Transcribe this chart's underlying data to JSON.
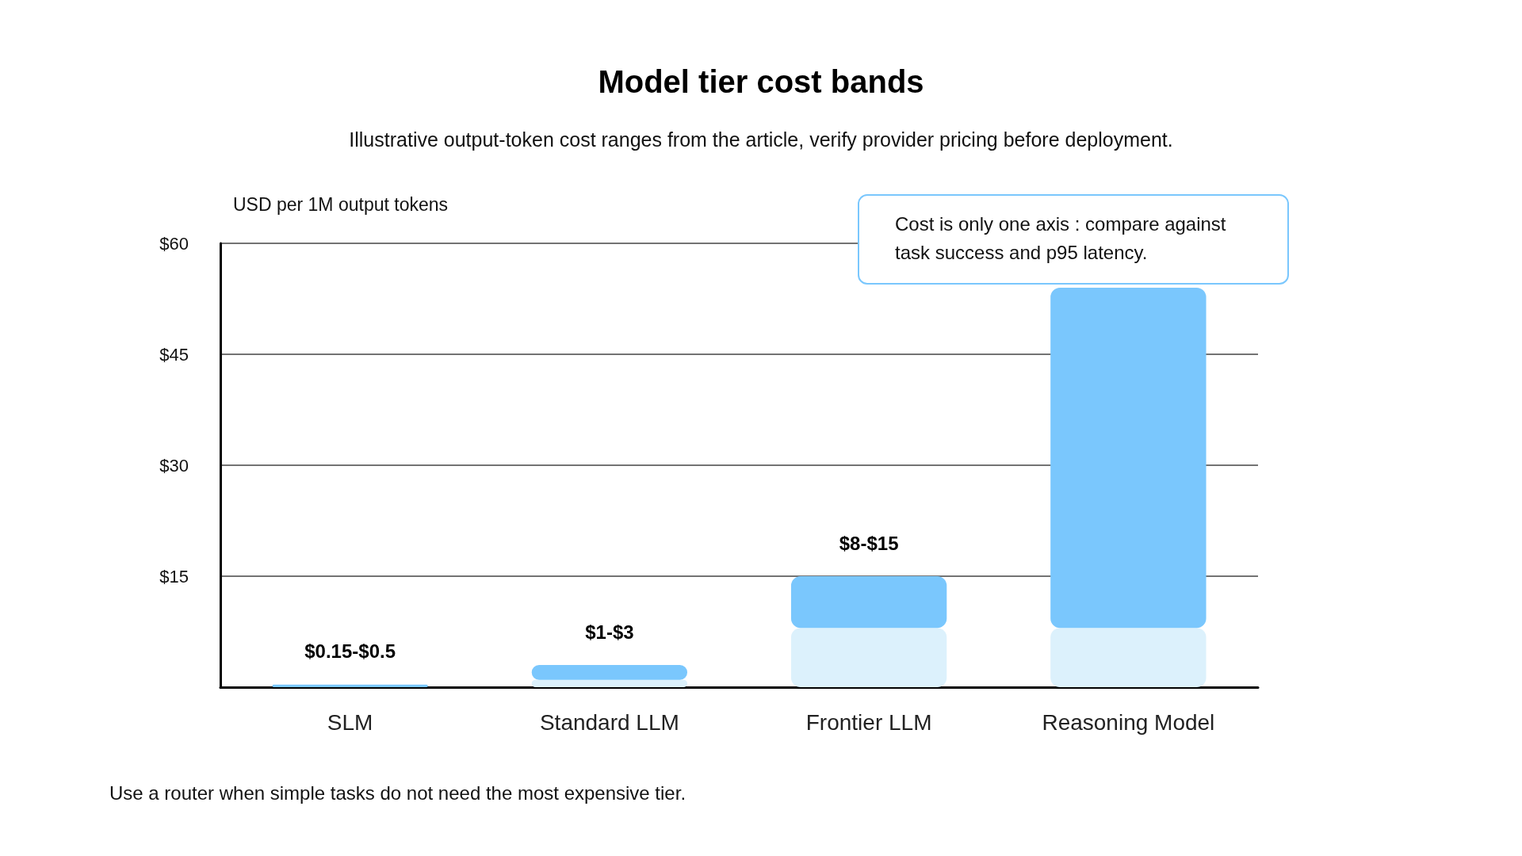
{
  "chart_data": {
    "type": "bar",
    "title": "Model tier cost bands",
    "subtitle": "Illustrative output-token cost ranges from the article, verify provider pricing before deployment.",
    "ylabel": "USD per 1M output tokens",
    "categories": [
      "SLM",
      "Standard LLM",
      "Frontier LLM",
      "Reasoning Model"
    ],
    "stacked": true,
    "series": [
      {
        "color": "#dcf1fc",
        "values": [
          null,
          1,
          8,
          8
        ]
      },
      {
        "color": "#7ac7fd",
        "values": [
          0.35,
          2,
          7,
          46
        ],
        "value_labels": [
          "$0.15-$0.5",
          "$1-$3",
          "$8-$15",
          null
        ]
      }
    ],
    "ylim": [
      0,
      60
    ],
    "yticks": [
      {
        "value": 15,
        "label": "$15"
      },
      {
        "value": 30,
        "label": "$30"
      },
      {
        "value": 45,
        "label": "$45"
      },
      {
        "value": 60,
        "label": "$60"
      }
    ],
    "grid": "y",
    "annotations": [
      "Cost is only one axis : compare against task success and p95 latency.",
      "Use a router when simple tasks do not need the most expensive tier."
    ]
  }
}
